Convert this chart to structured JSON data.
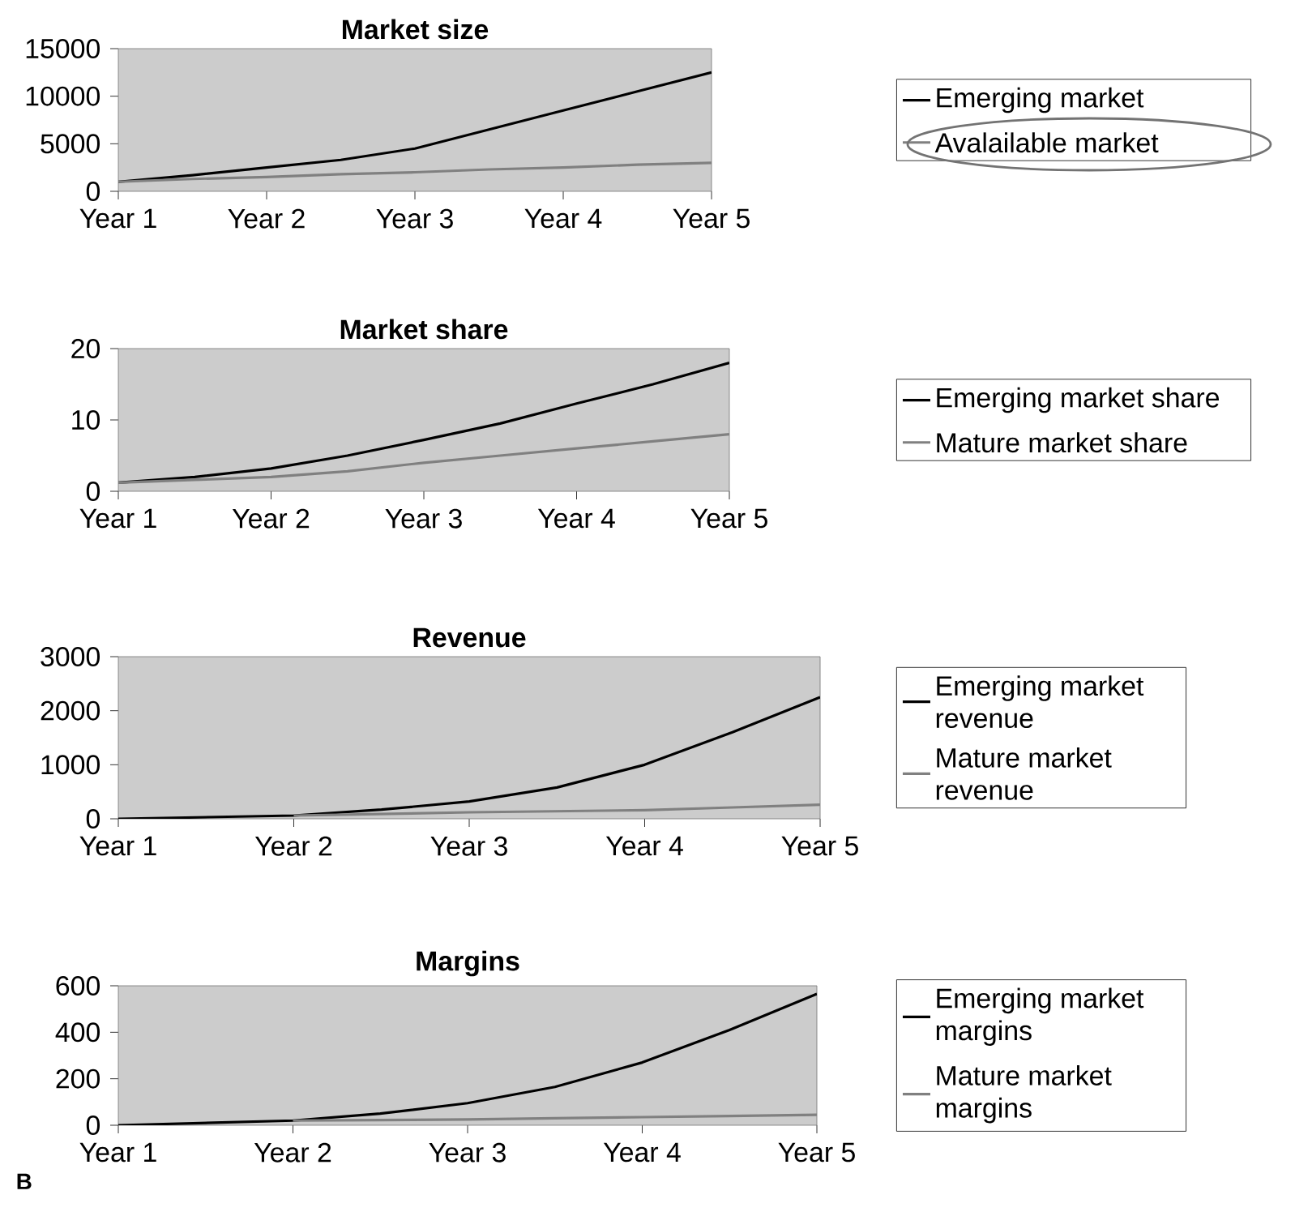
{
  "chart_data": [
    {
      "type": "line",
      "title": "Market size",
      "categories": [
        "Year 1",
        null,
        "Year 2",
        null,
        "Year 3",
        null,
        "Year 4",
        null,
        "Year 5"
      ],
      "ylim": [
        0,
        15000
      ],
      "yticks": [
        0,
        5000,
        10000,
        15000
      ],
      "legend": "right",
      "marker": "none",
      "series": [
        {
          "name": "Emerging market",
          "color": "#000000",
          "values": [
            1000,
            1700,
            2500,
            3300,
            4500,
            6500,
            8500,
            10500,
            12500
          ]
        },
        {
          "name": "Avalailable market",
          "color": "#808080",
          "values": [
            1000,
            1300,
            1500,
            1800,
            2000,
            2300,
            2500,
            2800,
            3000
          ]
        }
      ]
    },
    {
      "type": "line",
      "title": "Market share",
      "categories": [
        "Year 1",
        null,
        "Year 2",
        null,
        "Year 3",
        null,
        "Year 4",
        null,
        "Year 5"
      ],
      "ylim": [
        0,
        20
      ],
      "yticks": [
        0,
        10,
        20
      ],
      "legend": "right",
      "marker": "none",
      "series": [
        {
          "name": "Emerging market share",
          "color": "#000000",
          "values": [
            1.2,
            2,
            3.2,
            5,
            7.2,
            9.5,
            12.3,
            15,
            18
          ]
        },
        {
          "name": "Mature market share",
          "color": "#808080",
          "values": [
            1.2,
            1.6,
            2,
            2.8,
            4,
            5,
            6,
            7,
            8
          ]
        }
      ]
    },
    {
      "type": "line",
      "title": "Revenue",
      "categories": [
        "Year 1",
        null,
        "Year 2",
        null,
        "Year 3",
        null,
        "Year 4",
        null,
        "Year 5"
      ],
      "ylim": [
        0,
        3000
      ],
      "yticks": [
        0,
        1000,
        2000,
        3000
      ],
      "legend": "right",
      "marker": "none",
      "series": [
        {
          "name": "Emerging market revenue",
          "color": "#000000",
          "values": [
            0,
            30,
            60,
            170,
            320,
            580,
            1000,
            1600,
            2250
          ]
        },
        {
          "name": "Mature market revenue",
          "color": "#808080",
          "values": [
            null,
            null,
            60,
            90,
            120,
            140,
            160,
            210,
            260
          ]
        }
      ]
    },
    {
      "type": "line",
      "title": "Margins",
      "categories": [
        "Year 1",
        null,
        "Year 2",
        null,
        "Year 3",
        null,
        "Year 4",
        null,
        "Year 5"
      ],
      "ylim": [
        0,
        600
      ],
      "yticks": [
        0,
        200,
        400,
        600
      ],
      "legend": "right",
      "marker": "none",
      "annotations": [
        "B"
      ],
      "series": [
        {
          "name": "Emerging market margins",
          "color": "#000000",
          "values": [
            0,
            10,
            20,
            50,
            95,
            165,
            270,
            410,
            565
          ]
        },
        {
          "name": "Mature market margins",
          "color": "#808080",
          "values": [
            null,
            null,
            20,
            22,
            25,
            30,
            35,
            40,
            45
          ]
        }
      ]
    }
  ]
}
